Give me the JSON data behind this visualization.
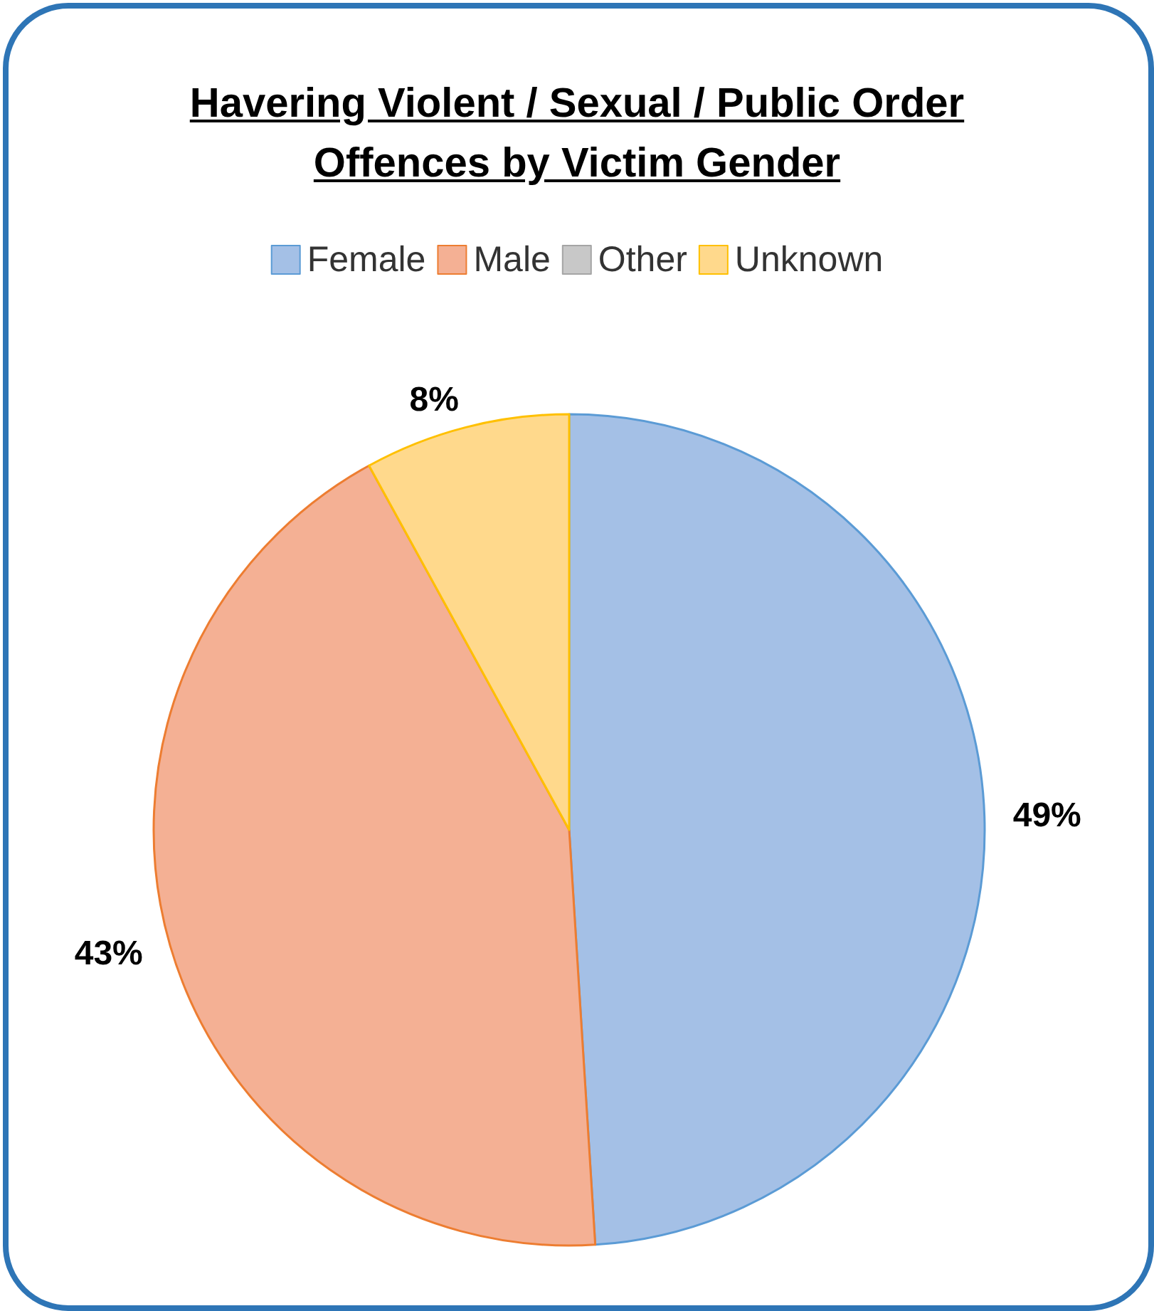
{
  "chart_data": {
    "type": "pie",
    "title": "Havering Violent / Sexual / Public Order Offences by Victim Gender",
    "categories": [
      "Female",
      "Male",
      "Other",
      "Unknown"
    ],
    "values": [
      49,
      43,
      0,
      8
    ],
    "colors": [
      "#a4c0e6",
      "#f4b094",
      "#c8c8c8",
      "#ffd98c"
    ],
    "value_labels": [
      "49%",
      "43%",
      null,
      "8%"
    ],
    "legend": "top"
  }
}
